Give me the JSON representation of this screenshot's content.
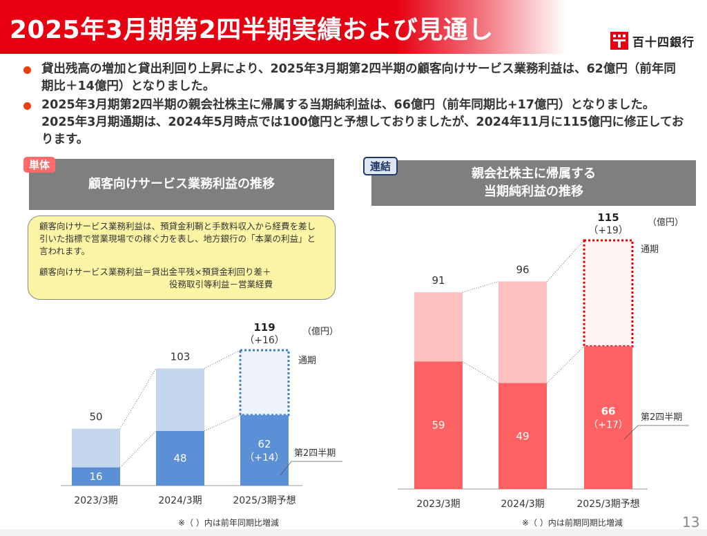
{
  "header": {
    "title": "2025年3月期第2四半期実績および見通し",
    "logo_text": "百十四銀行",
    "brand_color": "#e60012"
  },
  "bullets": [
    "貸出残高の増加と貸出利回り上昇により、2025年3月期第2四半期の顧客向けサービス業務利益は、62億円（前年同期比＋14億円）となりました。",
    "2025年3月期第2四半期の親会社株主に帰属する当期純利益は、66億円（前年同期比+17億円）となりました。2025年3月期通期は、2024年5月時点では100億円と予想しておりましたが、2024年11月に115億円に修正しております。"
  ],
  "left_panel": {
    "tag": "単体",
    "title": "顧客向けサービス業務利益の推移",
    "note_line1": "顧客向けサービス業務利益は、預貸金利鞘と手数料収入から経費を差し引いた指標で営業現場での稼ぐ力を表し、地方銀行の「本業の利益」と言われます。",
    "note_line2": "顧客向けサービス業務利益＝貸出金平残×預貸金利回り差＋",
    "note_line3": "役務取引等利益－営業経費",
    "footnote": "※（ ）内は前年同期比増減"
  },
  "right_panel": {
    "tag": "連結",
    "title_line1": "親会社株主に帰属する",
    "title_line2": "当期純利益の推移",
    "footnote": "※（ ）内は前期同期比増減"
  },
  "page_number": "13",
  "chart_data": [
    {
      "type": "bar",
      "unit": "（億円）",
      "categories": [
        "2023/3期",
        "2024/3期",
        "2025/3期予想"
      ],
      "series": [
        {
          "name": "第2四半期",
          "values": [
            16,
            48,
            62
          ]
        },
        {
          "name": "通期",
          "values": [
            50,
            103,
            119
          ]
        }
      ],
      "annotations": {
        "q2_change": "（+14）",
        "full_change": "（+16）"
      },
      "ylim": [
        0,
        125
      ],
      "colors": {
        "q2": "#5b8fd6",
        "full": "#c5d6ef",
        "forecast_fill": "#eef3fb",
        "forecast_border": "#3a7fc4"
      }
    },
    {
      "type": "bar",
      "unit": "（億円）",
      "categories": [
        "2023/3期",
        "2024/3期",
        "2025/3期予想"
      ],
      "series": [
        {
          "name": "第2四半期",
          "values": [
            59,
            49,
            66
          ]
        },
        {
          "name": "通期",
          "values": [
            91,
            96,
            115
          ]
        }
      ],
      "annotations": {
        "q2_change": "（+17）",
        "full_change": "（+19）"
      },
      "ylim": [
        0,
        120
      ],
      "colors": {
        "q2": "#ff6262",
        "full": "#ffc0c0",
        "forecast_fill": "#fff2f2",
        "forecast_border": "#e00000"
      }
    }
  ]
}
